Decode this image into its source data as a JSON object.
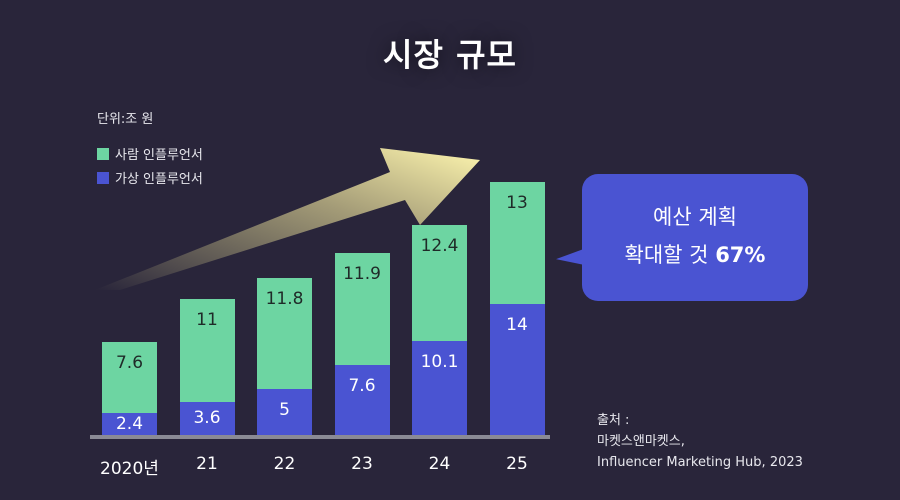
{
  "chart_data": {
    "type": "bar",
    "stacked": true,
    "title": "시장 규모",
    "unit_label": "단위:조 원",
    "categories": [
      "2020년",
      "21",
      "22",
      "23",
      "24",
      "25"
    ],
    "series": [
      {
        "name": "가상 인플루언서",
        "color": "#4a54d2",
        "values": [
          2.4,
          3.6,
          5,
          7.6,
          10.1,
          14
        ]
      },
      {
        "name": "사람 인플루언서",
        "color": "#6dd5a2",
        "values": [
          7.6,
          11,
          11.8,
          11.9,
          12.4,
          13
        ]
      }
    ],
    "legend": "top-left",
    "grid": false
  },
  "callout": {
    "line1": "예산 계획",
    "line2_prefix": "확대할 것",
    "line2_value": "67%"
  },
  "source": {
    "label": "출처 :",
    "line1": "마켓스앤마켓스,",
    "line2": "Influencer Marketing Hub, 2023"
  }
}
